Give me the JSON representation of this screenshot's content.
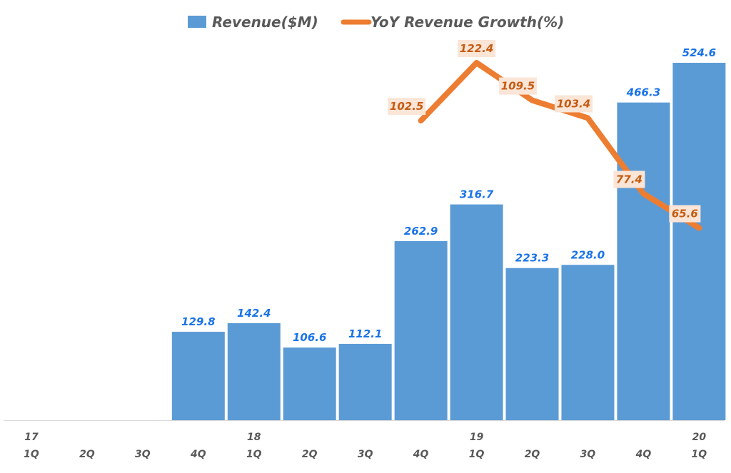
{
  "chart_data": {
    "type": "bar",
    "title": "",
    "xlabel": "",
    "ylabel": "",
    "grid": false,
    "legend_position": "top-center",
    "categories": [
      "17 1Q",
      "2Q",
      "3Q",
      "4Q",
      "18 1Q",
      "2Q",
      "3Q",
      "4Q",
      "19 1Q",
      "2Q",
      "3Q",
      "4Q",
      "20 1Q"
    ],
    "tick_labels": [
      {
        "year": "17",
        "quarter": "1Q"
      },
      {
        "year": "",
        "quarter": "2Q"
      },
      {
        "year": "",
        "quarter": "3Q"
      },
      {
        "year": "",
        "quarter": "4Q"
      },
      {
        "year": "18",
        "quarter": "1Q"
      },
      {
        "year": "",
        "quarter": "2Q"
      },
      {
        "year": "",
        "quarter": "3Q"
      },
      {
        "year": "",
        "quarter": "4Q"
      },
      {
        "year": "19",
        "quarter": "1Q"
      },
      {
        "year": "",
        "quarter": "2Q"
      },
      {
        "year": "",
        "quarter": "3Q"
      },
      {
        "year": "",
        "quarter": "4Q"
      },
      {
        "year": "20",
        "quarter": "1Q"
      }
    ],
    "series": [
      {
        "name": "Revenue($M)",
        "type": "bar",
        "color": "#5b9bd5",
        "label_color": "#1a73e8",
        "values": [
          null,
          null,
          null,
          129.8,
          142.4,
          106.6,
          112.1,
          262.9,
          316.7,
          223.3,
          228.0,
          466.3,
          524.6
        ],
        "labels": [
          "",
          "",
          "",
          "129.8",
          "142.4",
          "106.6",
          "112.1",
          "262.9",
          "316.7",
          "223.3",
          "228.0",
          "466.3",
          "524.6"
        ],
        "ylim": [
          0,
          525
        ]
      },
      {
        "name": "YoY Revenue Growth(%)",
        "type": "line",
        "color": "#ed7d31",
        "label_color": "#c55a11",
        "label_bg": "#fbe5d6",
        "values": [
          null,
          null,
          null,
          null,
          null,
          null,
          null,
          102.5,
          122.4,
          109.5,
          103.4,
          77.4,
          65.6
        ],
        "labels": [
          "",
          "",
          "",
          "",
          "",
          "",
          "",
          "102.5",
          "122.4",
          "109.5",
          "103.4",
          "77.4",
          "65.6"
        ],
        "ylim": [
          0,
          122.4
        ]
      }
    ]
  },
  "legend": {
    "items": [
      {
        "label": "Revenue($M)",
        "color": "#5b9bd5",
        "marker": "square"
      },
      {
        "label": "YoY Revenue Growth(%)",
        "color": "#ed7d31",
        "marker": "line"
      }
    ]
  }
}
